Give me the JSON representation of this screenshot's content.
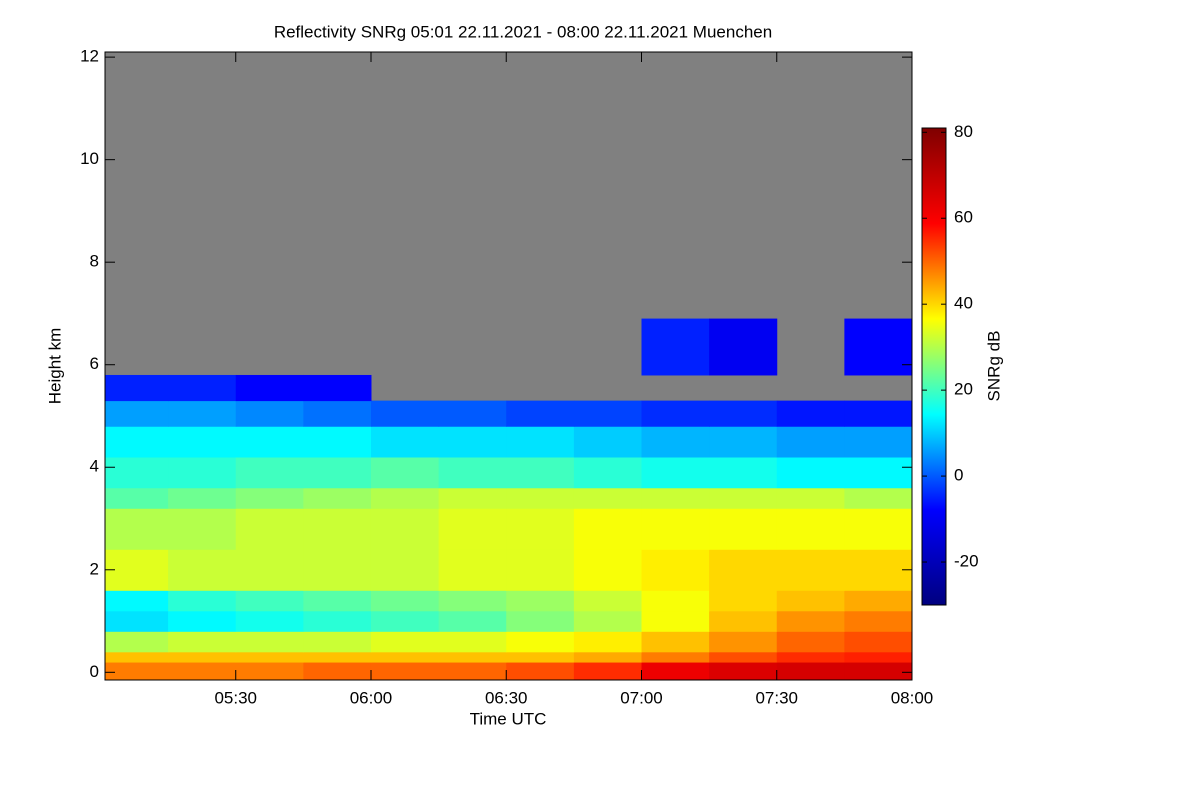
{
  "chart_data": {
    "type": "heatmap",
    "title": "Reflectivity SNRg   05:01 22.11.2021 - 08:00 22.11.2021 Muenchen",
    "xlabel": "Time UTC",
    "ylabel": "Height km",
    "colorbar_label": "SNRg dB",
    "x": [
      5.0167,
      5.25,
      5.5,
      5.75,
      6.0,
      6.25,
      6.5,
      6.75,
      7.0,
      7.25,
      7.5,
      7.75,
      8.0
    ],
    "y": [
      -0.15,
      0.2,
      0.4,
      0.8,
      1.2,
      1.6,
      2.4,
      3.2,
      3.6,
      4.2,
      4.8,
      5.3,
      5.8,
      6.9,
      12.1
    ],
    "z": [
      [
        48,
        48,
        48,
        50,
        50,
        50,
        52,
        55,
        62,
        65,
        66,
        66
      ],
      [
        42,
        42,
        42,
        42,
        42,
        42,
        42,
        44,
        48,
        52,
        55,
        56
      ],
      [
        30,
        32,
        32,
        32,
        34,
        34,
        36,
        38,
        42,
        46,
        50,
        52
      ],
      [
        12,
        14,
        16,
        18,
        20,
        22,
        26,
        30,
        36,
        42,
        46,
        48
      ],
      [
        14,
        18,
        20,
        22,
        24,
        26,
        28,
        32,
        36,
        40,
        42,
        44
      ],
      [
        34,
        32,
        32,
        32,
        32,
        34,
        34,
        36,
        38,
        40,
        40,
        40
      ],
      [
        30,
        30,
        32,
        32,
        32,
        34,
        34,
        36,
        36,
        36,
        36,
        36
      ],
      [
        22,
        24,
        26,
        28,
        30,
        32,
        32,
        32,
        32,
        32,
        32,
        30
      ],
      [
        18,
        18,
        20,
        20,
        22,
        20,
        20,
        18,
        16,
        16,
        14,
        14
      ],
      [
        14,
        14,
        14,
        14,
        12,
        12,
        12,
        10,
        8,
        8,
        6,
        6
      ],
      [
        6,
        6,
        4,
        2,
        0,
        0,
        -2,
        -2,
        -4,
        -4,
        -6,
        -6
      ],
      [
        -5,
        -5,
        -8,
        -8,
        null,
        null,
        null,
        null,
        null,
        null,
        null,
        null
      ],
      [
        null,
        null,
        null,
        null,
        null,
        null,
        null,
        null,
        -5,
        -10,
        null,
        -8
      ],
      [
        null,
        null,
        null,
        null,
        null,
        null,
        null,
        null,
        null,
        null,
        null,
        null
      ]
    ],
    "xlim": [
      5.0167,
      8.0
    ],
    "xticks": [
      {
        "value": 5.5,
        "label": "05:30"
      },
      {
        "value": 6.0,
        "label": "06:00"
      },
      {
        "value": 6.5,
        "label": "06:30"
      },
      {
        "value": 7.0,
        "label": "07:00"
      },
      {
        "value": 7.5,
        "label": "07:30"
      },
      {
        "value": 8.0,
        "label": "08:00"
      }
    ],
    "ylim": [
      -0.15,
      12.1
    ],
    "yticks": [
      0,
      2,
      4,
      6,
      8,
      10,
      12
    ],
    "clim": [
      -30,
      81
    ],
    "cticks": [
      -20,
      0,
      20,
      40,
      60,
      80
    ],
    "colormap": [
      "#00007f",
      "#0000ff",
      "#00ffff",
      "#ffff00",
      "#ff0000",
      "#7f0000"
    ],
    "missing_color": "#808080"
  }
}
